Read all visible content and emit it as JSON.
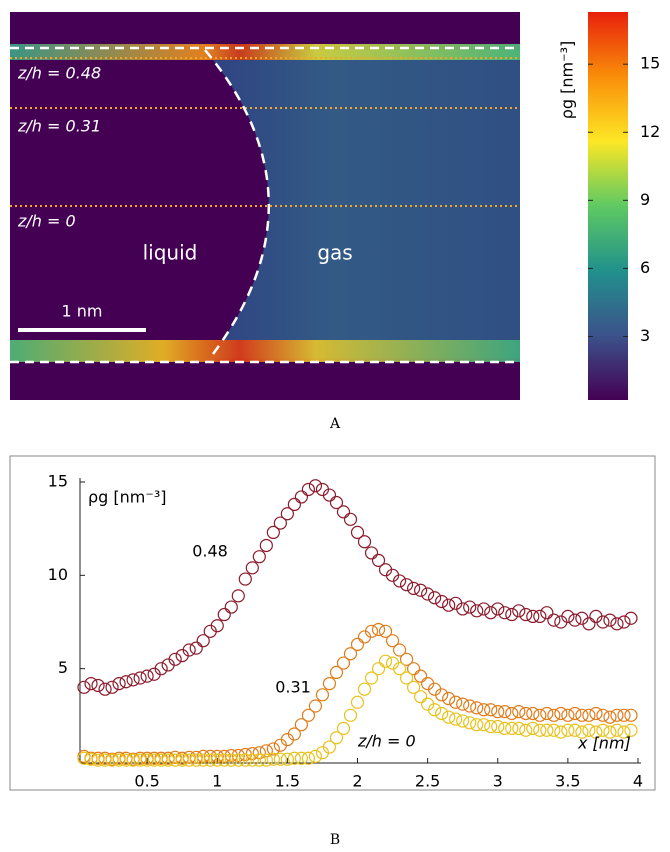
{
  "chart_data": [
    {
      "type": "heatmap",
      "label": "A",
      "colorbar_label": "ρg [nm⁻³]",
      "clim": [
        0.2,
        17.3
      ],
      "cticks": [
        3,
        6,
        9,
        12,
        15
      ],
      "colormap": [
        "#440154",
        "#3b528b",
        "#21918c",
        "#5ec962",
        "#fde725",
        "#f98e09",
        "#e8200c"
      ],
      "annotations": [
        "z/h = 0.48",
        "z/h = 0.31",
        "z/h = 0",
        "liquid",
        "gas",
        "1 nm"
      ]
    },
    {
      "type": "scatter",
      "label": "B",
      "y_label": "ρg [nm⁻³]",
      "x_label": "x [nm]",
      "xlim": [
        0,
        4
      ],
      "ylim": [
        0,
        15
      ],
      "xticks": [
        0.5,
        1,
        1.5,
        2,
        2.5,
        3,
        3.5,
        4
      ],
      "yticks": [
        5,
        10,
        15
      ],
      "x": [
        0.05,
        0.1,
        0.15,
        0.2,
        0.25,
        0.3,
        0.35,
        0.4,
        0.45,
        0.5,
        0.55,
        0.6,
        0.65,
        0.7,
        0.75,
        0.8,
        0.85,
        0.9,
        0.95,
        1,
        1.05,
        1.1,
        1.15,
        1.2,
        1.25,
        1.3,
        1.35,
        1.4,
        1.45,
        1.5,
        1.55,
        1.6,
        1.65,
        1.7,
        1.75,
        1.8,
        1.85,
        1.9,
        1.95,
        2,
        2.05,
        2.1,
        2.15,
        2.2,
        2.25,
        2.3,
        2.35,
        2.4,
        2.45,
        2.5,
        2.55,
        2.6,
        2.65,
        2.7,
        2.75,
        2.8,
        2.85,
        2.9,
        2.95,
        3,
        3.05,
        3.1,
        3.15,
        3.2,
        3.25,
        3.3,
        3.35,
        3.4,
        3.45,
        3.5,
        3.55,
        3.6,
        3.65,
        3.7,
        3.75,
        3.8,
        3.85,
        3.9,
        3.95
      ],
      "series": [
        {
          "name": "0.48",
          "color": "#8b1a2b",
          "values": [
            4.0,
            4.2,
            4.1,
            3.9,
            4.0,
            4.2,
            4.3,
            4.4,
            4.5,
            4.6,
            4.7,
            5.0,
            5.2,
            5.5,
            5.7,
            6.0,
            6.1,
            6.5,
            7.0,
            7.3,
            7.9,
            8.3,
            8.9,
            9.8,
            10.4,
            11.0,
            11.6,
            12.3,
            12.8,
            13.3,
            13.8,
            14.2,
            14.6,
            14.8,
            14.6,
            14.3,
            13.9,
            13.4,
            13.0,
            12.3,
            11.8,
            11.2,
            10.8,
            10.3,
            10.0,
            9.7,
            9.5,
            9.3,
            9.2,
            9.0,
            8.8,
            8.6,
            8.4,
            8.5,
            8.2,
            8.3,
            8.1,
            8.2,
            8.0,
            8.2,
            8.0,
            7.9,
            8.1,
            7.9,
            7.8,
            7.8,
            8.0,
            7.6,
            7.5,
            7.8,
            7.6,
            7.7,
            7.4,
            7.8,
            7.5,
            7.6,
            7.4,
            7.5,
            7.7
          ]
        },
        {
          "name": "0.31",
          "color": "#e07b1a",
          "values": [
            0.3,
            0.2,
            0.2,
            0.2,
            0.15,
            0.2,
            0.2,
            0.15,
            0.2,
            0.2,
            0.2,
            0.2,
            0.2,
            0.25,
            0.2,
            0.25,
            0.25,
            0.3,
            0.3,
            0.3,
            0.3,
            0.35,
            0.35,
            0.4,
            0.45,
            0.5,
            0.6,
            0.7,
            0.9,
            1.2,
            1.5,
            2.0,
            2.5,
            3.0,
            3.6,
            4.2,
            4.8,
            5.3,
            5.8,
            6.3,
            6.7,
            7.0,
            7.1,
            7.0,
            6.5,
            6.0,
            5.5,
            5.0,
            4.6,
            4.2,
            3.9,
            3.6,
            3.4,
            3.2,
            3.1,
            3.0,
            2.9,
            2.8,
            2.8,
            2.7,
            2.7,
            2.6,
            2.7,
            2.6,
            2.6,
            2.5,
            2.6,
            2.5,
            2.6,
            2.5,
            2.6,
            2.5,
            2.5,
            2.6,
            2.5,
            2.4,
            2.5,
            2.5,
            2.5
          ]
        },
        {
          "name": "z/h = 0",
          "color": "#e8c21a",
          "values": [
            0.2,
            0.15,
            0.1,
            0.1,
            0.1,
            0.1,
            0.1,
            0.1,
            0.1,
            0.1,
            0.1,
            0.1,
            0.1,
            0.1,
            0.1,
            0.1,
            0.1,
            0.1,
            0.1,
            0.1,
            0.1,
            0.1,
            0.1,
            0.1,
            0.1,
            0.1,
            0.1,
            0.15,
            0.15,
            0.15,
            0.2,
            0.2,
            0.2,
            0.3,
            0.5,
            0.8,
            1.3,
            1.8,
            2.5,
            3.2,
            3.9,
            4.5,
            5.0,
            5.4,
            5.3,
            5.0,
            4.5,
            4.0,
            3.5,
            3.1,
            2.8,
            2.6,
            2.4,
            2.3,
            2.2,
            2.1,
            2.0,
            2.0,
            1.9,
            1.9,
            1.8,
            1.8,
            1.8,
            1.7,
            1.8,
            1.7,
            1.7,
            1.7,
            1.6,
            1.7,
            1.7,
            1.6,
            1.7,
            1.6,
            1.7,
            1.6,
            1.7,
            1.6,
            1.7
          ]
        }
      ]
    }
  ]
}
